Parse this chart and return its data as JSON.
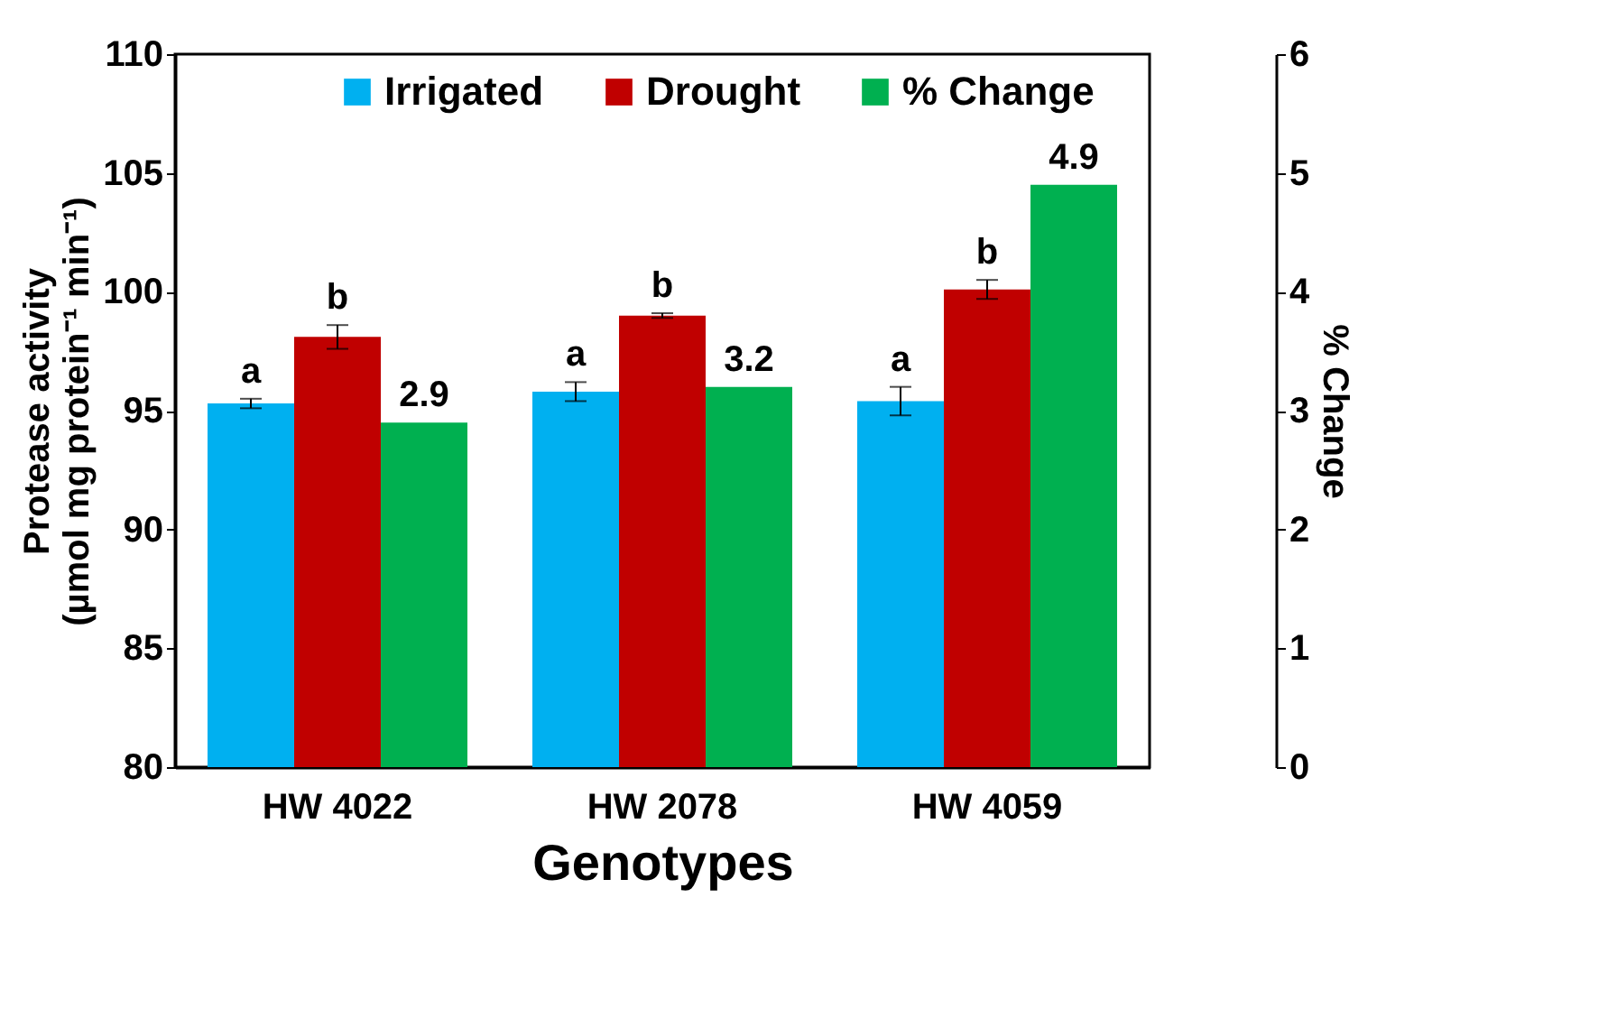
{
  "chart_data": {
    "type": "bar",
    "xlabel": "Genotypes",
    "ylabel": "Protease activity\n(µmol mg protein⁻¹ min⁻¹)",
    "y2label": "% Change",
    "categories": [
      "HW 4022",
      "HW 2078",
      "HW 4059"
    ],
    "series": [
      {
        "name": "Irrigated",
        "color": "#00b0f0",
        "values": [
          95.3,
          95.8,
          95.4
        ],
        "errors": [
          0.2,
          0.4,
          0.6
        ],
        "value_labels": [
          "a",
          "a",
          "a"
        ]
      },
      {
        "name": "Drought",
        "color": "#c00000",
        "values": [
          98.1,
          99.0,
          100.1
        ],
        "errors": [
          0.5,
          0.1,
          0.4
        ],
        "value_labels": [
          "b",
          "b",
          "b"
        ]
      },
      {
        "name": "% Change",
        "color": "#00b050",
        "axis": "y2",
        "values": [
          2.9,
          3.2,
          4.9
        ],
        "value_labels": [
          "2.9",
          "3.2",
          "4.9"
        ]
      }
    ],
    "ylim": [
      80,
      110
    ],
    "yticks": [
      80,
      85,
      90,
      95,
      100,
      105,
      110
    ],
    "y2lim": [
      0,
      6
    ],
    "y2ticks": [
      0,
      1,
      2,
      3,
      4,
      5,
      6
    ],
    "grid": false,
    "legend": "top"
  }
}
